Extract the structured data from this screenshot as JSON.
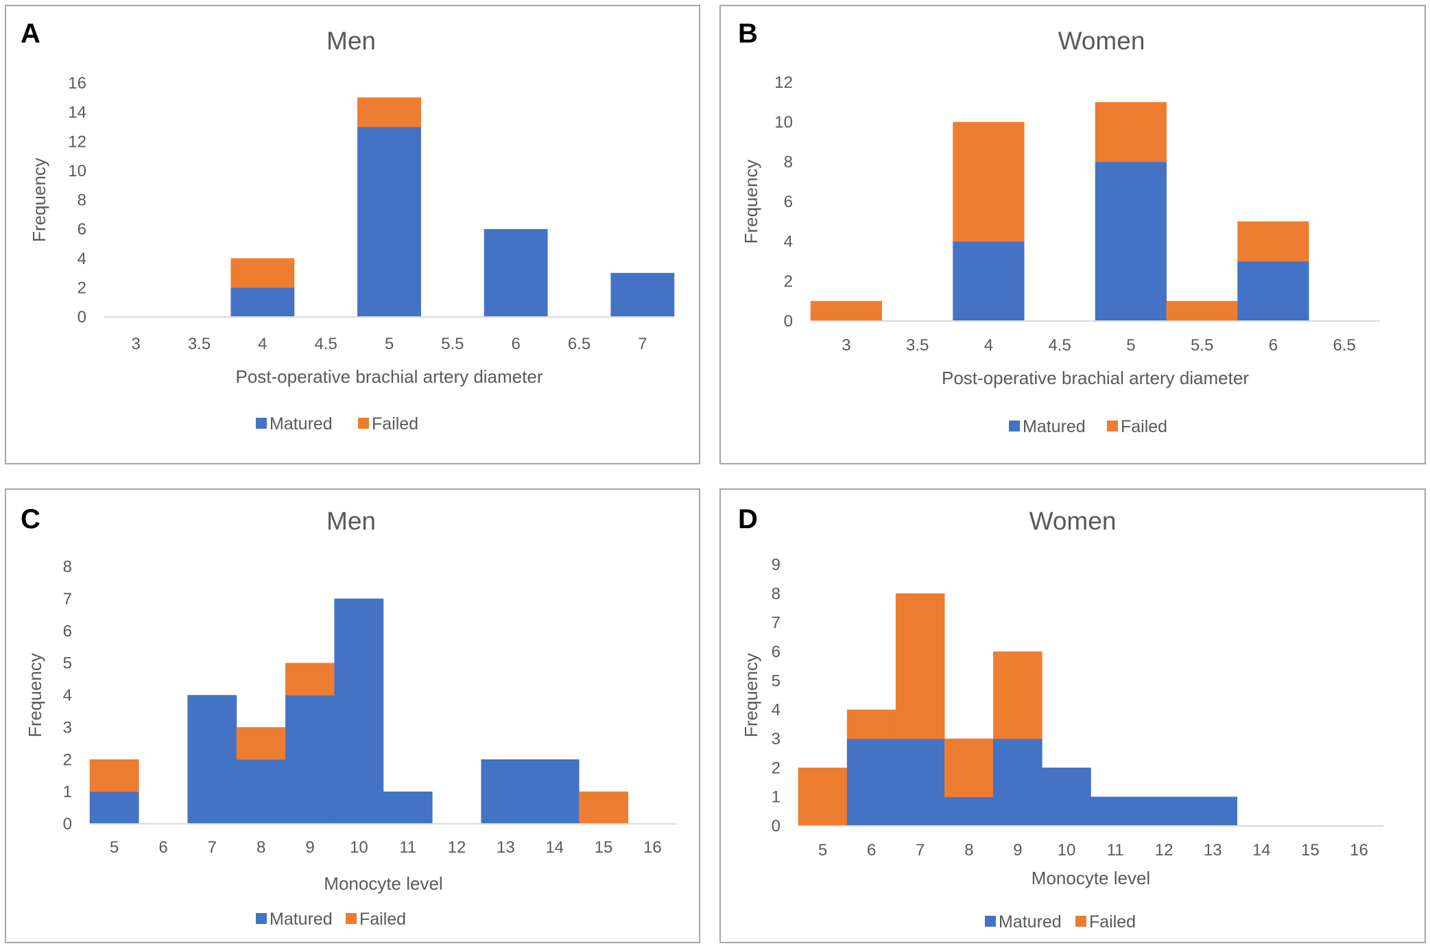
{
  "legend": {
    "matured": "Matured",
    "failed": "Failed"
  },
  "colors": {
    "matured": "#4472C4",
    "failed": "#ED7D31"
  },
  "chart_data": [
    {
      "panel": "A",
      "type": "bar",
      "stacked": true,
      "title": "Men",
      "xlabel": "Post-operative brachial artery diameter",
      "ylabel": "Frequency",
      "categories": [
        "3",
        "3.5",
        "4",
        "4.5",
        "5",
        "5.5",
        "6",
        "6.5",
        "7"
      ],
      "ylim": [
        0,
        16
      ],
      "yticks": [
        0,
        2,
        4,
        6,
        8,
        10,
        12,
        14,
        16
      ],
      "series": [
        {
          "name": "Matured",
          "values": [
            0,
            0,
            2,
            0,
            13,
            0,
            6,
            0,
            3
          ]
        },
        {
          "name": "Failed",
          "values": [
            0,
            0,
            2,
            0,
            2,
            0,
            0,
            0,
            0
          ]
        }
      ]
    },
    {
      "panel": "B",
      "type": "bar",
      "stacked": true,
      "title": "Women",
      "xlabel": "Post-operative brachial artery diameter",
      "ylabel": "Frequency",
      "categories": [
        "3",
        "3.5",
        "4",
        "4.5",
        "5",
        "5.5",
        "6",
        "6.5"
      ],
      "ylim": [
        0,
        12
      ],
      "yticks": [
        0,
        2,
        4,
        6,
        8,
        10,
        12
      ],
      "series": [
        {
          "name": "Matured",
          "values": [
            0,
            0,
            4,
            0,
            8,
            0,
            3,
            0
          ]
        },
        {
          "name": "Failed",
          "values": [
            1,
            0,
            6,
            0,
            3,
            1,
            2,
            0
          ]
        }
      ]
    },
    {
      "panel": "C",
      "type": "bar",
      "stacked": true,
      "title": "Men",
      "xlabel": "Monocyte level",
      "ylabel": "Frequency",
      "categories": [
        "5",
        "6",
        "7",
        "8",
        "9",
        "10",
        "11",
        "12",
        "13",
        "14",
        "15",
        "16"
      ],
      "ylim": [
        0,
        8
      ],
      "yticks": [
        0,
        1,
        2,
        3,
        4,
        5,
        6,
        7,
        8
      ],
      "series": [
        {
          "name": "Matured",
          "values": [
            1,
            0,
            4,
            2,
            4,
            7,
            1,
            0,
            2,
            2,
            0,
            0
          ]
        },
        {
          "name": "Failed",
          "values": [
            1,
            0,
            0,
            1,
            1,
            0,
            0,
            0,
            0,
            0,
            1,
            0
          ]
        }
      ]
    },
    {
      "panel": "D",
      "type": "bar",
      "stacked": true,
      "title": "Women",
      "xlabel": "Monocyte level",
      "ylabel": "Frequency",
      "categories": [
        "5",
        "6",
        "7",
        "8",
        "9",
        "10",
        "11",
        "12",
        "13",
        "14",
        "15",
        "16"
      ],
      "ylim": [
        0,
        9
      ],
      "yticks": [
        0,
        1,
        2,
        3,
        4,
        5,
        6,
        7,
        8,
        9
      ],
      "series": [
        {
          "name": "Matured",
          "values": [
            0,
            3,
            3,
            1,
            3,
            2,
            1,
            1,
            1,
            0,
            0,
            0
          ]
        },
        {
          "name": "Failed",
          "values": [
            2,
            1,
            5,
            2,
            3,
            0,
            0,
            0,
            0,
            0,
            0,
            0
          ]
        }
      ]
    }
  ]
}
